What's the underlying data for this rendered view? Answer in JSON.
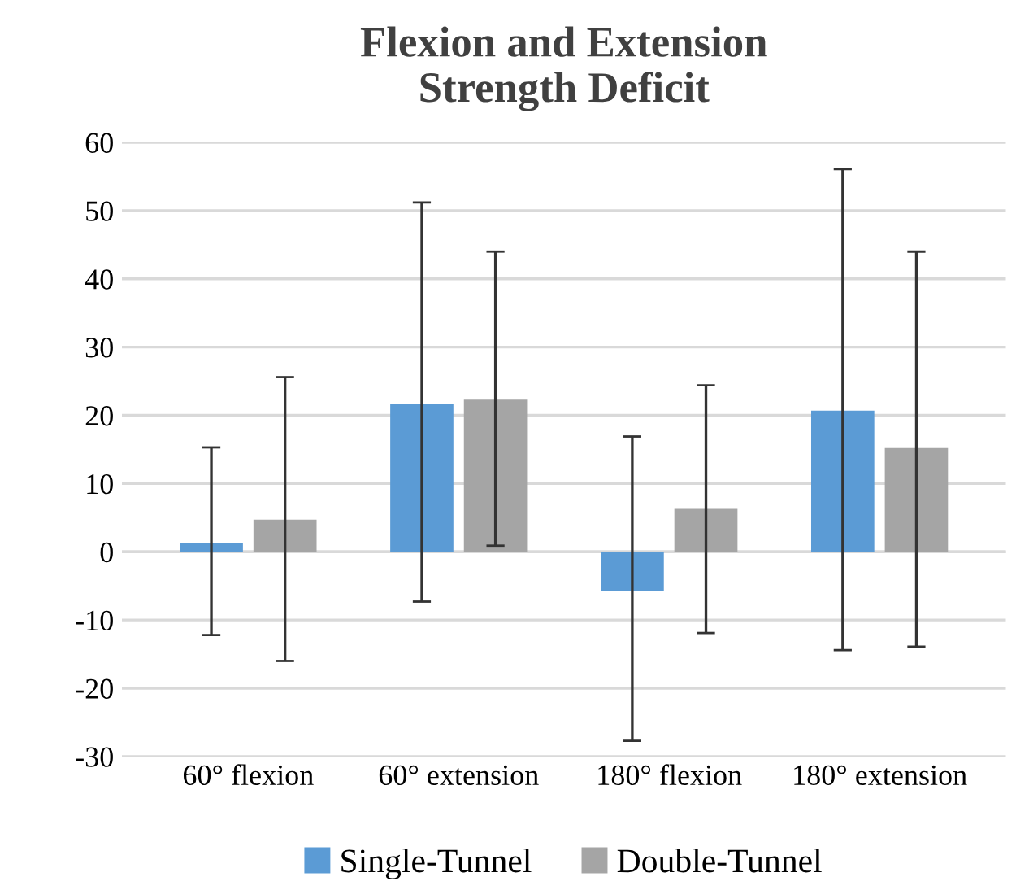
{
  "chart_data": {
    "type": "bar",
    "title": "Flexion and Extension\nStrength Deficit",
    "categories": [
      "60° flexion",
      "60° extension",
      "180° flexion",
      "180° extension"
    ],
    "series": [
      {
        "name": "Single-Tunnel",
        "color": "#5b9bd5",
        "values": [
          1.3,
          21.7,
          -5.8,
          20.7
        ],
        "errors": [
          [
            -12.2,
            15.3
          ],
          [
            -7.3,
            51.2
          ],
          [
            -27.7,
            16.9
          ],
          [
            -14.4,
            56.1
          ]
        ]
      },
      {
        "name": "Double-Tunnel",
        "color": "#a5a5a5",
        "values": [
          4.7,
          22.3,
          6.3,
          15.2
        ],
        "errors": [
          [
            -16.0,
            25.6
          ],
          [
            0.9,
            44.0
          ],
          [
            -11.9,
            24.4
          ],
          [
            -13.9,
            44.0
          ]
        ]
      }
    ],
    "ylim": [
      -30,
      60
    ],
    "yticks": [
      -30,
      -20,
      -10,
      0,
      10,
      20,
      30,
      40,
      50,
      60
    ],
    "grid": "y",
    "legend": "bottom"
  }
}
